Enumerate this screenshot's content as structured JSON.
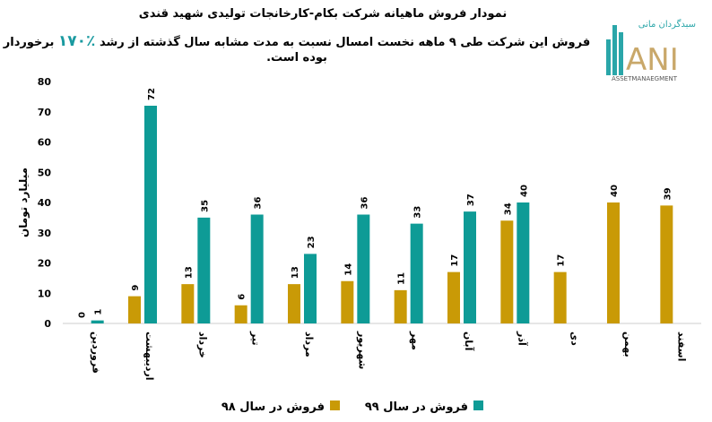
{
  "header": {
    "title": "نمودار فروش ماهیانه شرکت بکام-کارخانجات تولیدی شهید قندی",
    "subtitle_before": "فروش این شرکت طی ۹ ماهه نخست امسال نسبت به مدت مشابه سال گذشته از رشد",
    "subtitle_highlight": "٪۱۷۰",
    "subtitle_after": "برخوردار بوده است."
  },
  "logo": {
    "text_fa": "سبدگردان مانی",
    "text_main": "ANI",
    "text_sub": "ASSETMANAEGMENT"
  },
  "chart_data": {
    "type": "bar",
    "title": "",
    "ylabel": "میلیارد تومان",
    "xlabel": "",
    "ylim": [
      0,
      80
    ],
    "yticks": [
      0,
      10,
      20,
      30,
      40,
      50,
      60,
      70,
      80
    ],
    "grid": false,
    "legend_placement": "bottom",
    "categories": [
      "فروردین",
      "اردیبهشت",
      "خرداد",
      "تیر",
      "مرداد",
      "شهریور",
      "مهر",
      "آبان",
      "آذر",
      "دی",
      "بهمن",
      "اسفند"
    ],
    "series": [
      {
        "name": "فروش در سال ۹۸",
        "color": "#c99a06",
        "values": [
          0,
          9,
          13,
          6,
          13,
          14,
          11,
          17,
          34,
          17,
          40,
          39
        ]
      },
      {
        "name": "فروش در سال ۹۹",
        "color": "#0e9b96",
        "values": [
          1,
          72,
          35,
          36,
          23,
          36,
          33,
          37,
          40,
          null,
          null,
          null
        ]
      }
    ]
  }
}
